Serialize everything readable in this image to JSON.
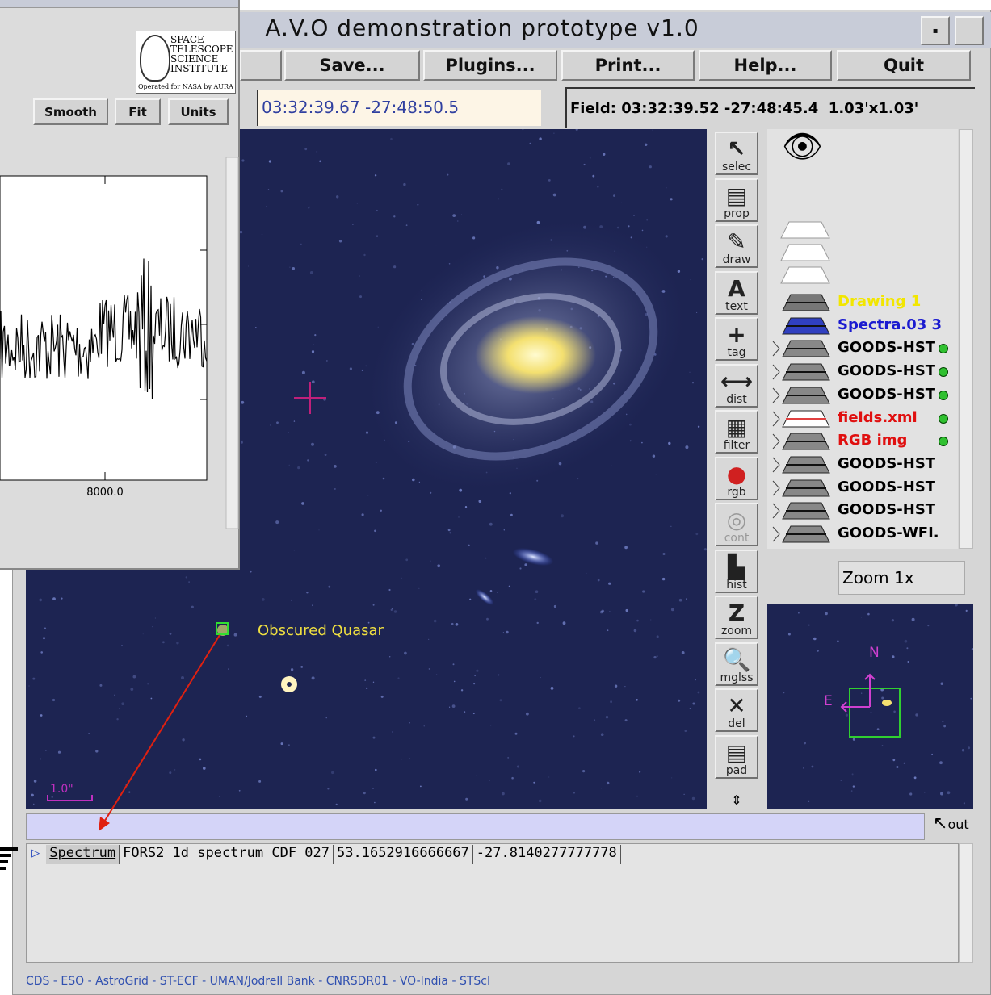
{
  "window": {
    "title": "A.V.O demonstration prototype v1.0",
    "menu": [
      "Save...",
      "Plugins...",
      "Print...",
      "Help...",
      "Quit"
    ]
  },
  "coordinates": "03:32:39.67 -27:48:50.5",
  "field": "Field: 03:32:39.52 -27:48:45.4  1.03'x1.03'",
  "tools": [
    "selec",
    "prop",
    "draw",
    "text",
    "tag",
    "dist",
    "filter",
    "rgb",
    "cont",
    "hist",
    "zoom",
    "mglss",
    "del",
    "pad"
  ],
  "layers": [
    {
      "name": "Drawing 1",
      "color": "#f2e600"
    },
    {
      "name": "Spectra.03 3",
      "color": "#1a1ad0"
    },
    {
      "name": "GOODS-HST",
      "color": "#000000"
    },
    {
      "name": "GOODS-HST",
      "color": "#000000"
    },
    {
      "name": "GOODS-HST",
      "color": "#000000"
    },
    {
      "name": "fields.xml",
      "color": "#e01010"
    },
    {
      "name": "RGB img",
      "color": "#e01010"
    },
    {
      "name": "GOODS-HST",
      "color": "#000000"
    },
    {
      "name": "GOODS-HST",
      "color": "#000000"
    },
    {
      "name": "GOODS-HST",
      "color": "#000000"
    },
    {
      "name": "GOODS-WFI.",
      "color": "#000000"
    }
  ],
  "zoom": "Zoom 1x",
  "image": {
    "annotation": "Obscured Quasar",
    "scale": "1.0\""
  },
  "minimap": {
    "north": "N",
    "east": "E"
  },
  "out_button": "out",
  "table": {
    "rows": [
      [
        "Spectrum",
        "FORS2 1d spectrum CDF 027",
        "53.1652916666667",
        "-27.8140277777778"
      ]
    ]
  },
  "footer": "CDS - ESO - AstroGrid - ST-ECF - UMAN/Jodrell Bank - CNRSDR01 - VO-India - STScI",
  "spectrum_window": {
    "logo": [
      "SPACE",
      "TELESCOPE",
      "SCIENCE",
      "INSTITUTE"
    ],
    "logo_note": "Operated for NASA by AURA",
    "buttons": [
      "Smooth",
      "Fit",
      "Units"
    ],
    "x_tick": "8000.0"
  }
}
